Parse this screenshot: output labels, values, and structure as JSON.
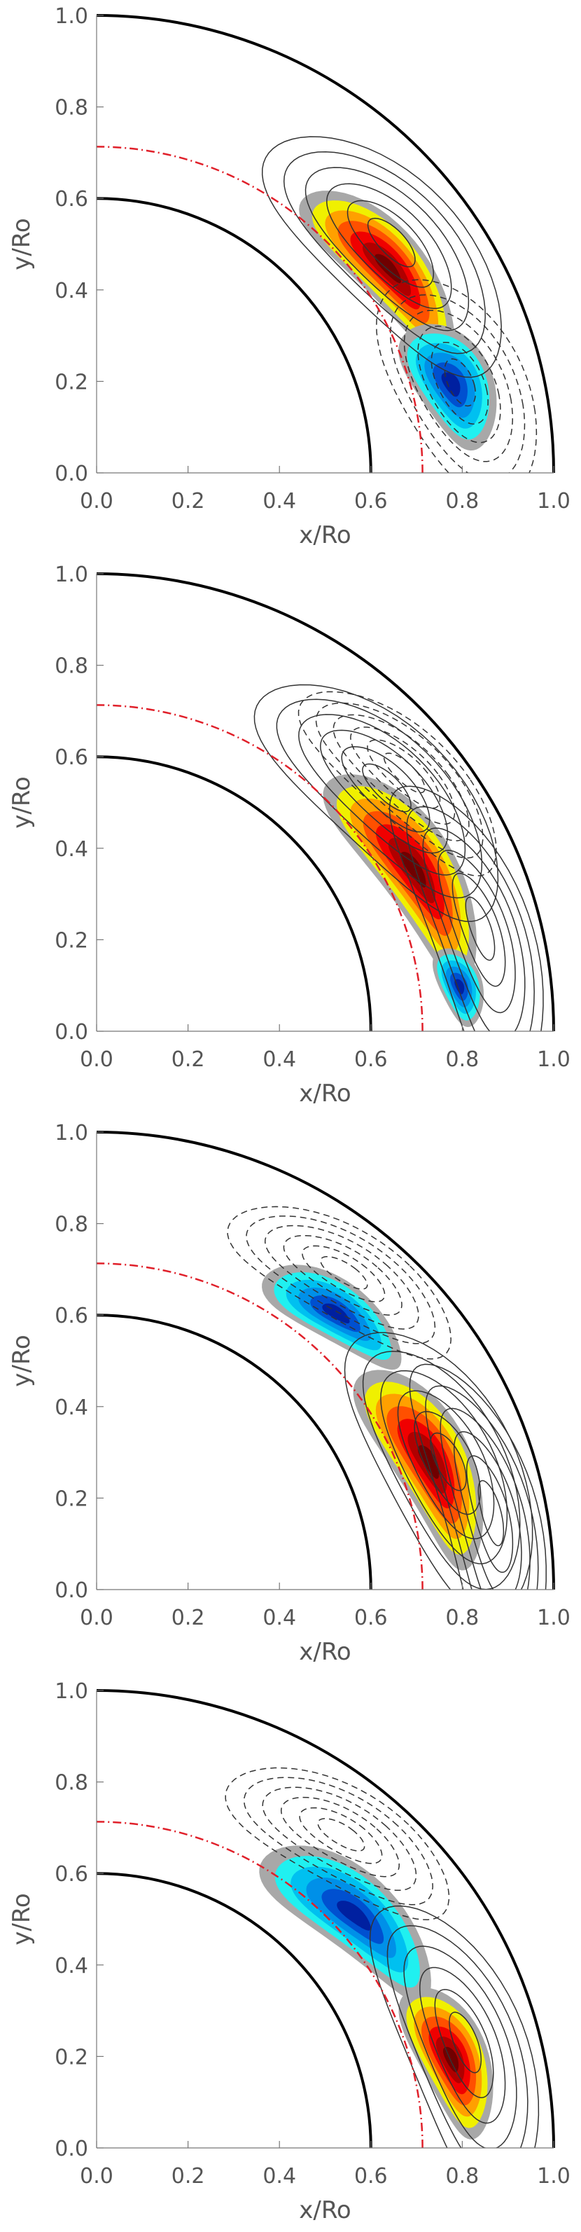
{
  "chart_data": [
    {
      "type": "contour",
      "panel": 1,
      "xlabel": "x/Ro",
      "ylabel": "y/Ro",
      "xlim": [
        0.0,
        1.0
      ],
      "ylim": [
        0.0,
        1.0
      ],
      "xticks": [
        "0.0",
        "0.2",
        "0.4",
        "0.6",
        "0.8",
        "1.0"
      ],
      "yticks": [
        "0.0",
        "0.2",
        "0.4",
        "0.6",
        "0.8",
        "1.0"
      ],
      "inner_boundary_radius": 0.6,
      "outer_boundary_radius": 1.0,
      "tachocline_radius": 0.713,
      "blobs": [
        {
          "sign": "positive",
          "center_r": 0.78,
          "center_theta_deg": 35,
          "radial_extent": 0.08,
          "angular_extent_deg": 17
        },
        {
          "sign": "negative",
          "center_r": 0.8,
          "center_theta_deg": 14,
          "radial_extent": 0.09,
          "angular_extent_deg": 10
        }
      ],
      "cells": [
        {
          "sign": "positive",
          "peak_r": 0.82,
          "peak_theta_deg": 38
        },
        {
          "sign": "negative",
          "peak_r": 0.82,
          "peak_theta_deg": 14
        }
      ]
    },
    {
      "type": "contour",
      "panel": 2,
      "xlabel": "x/Ro",
      "ylabel": "y/Ro",
      "xlim": [
        0.0,
        1.0
      ],
      "ylim": [
        0.0,
        1.0
      ],
      "xticks": [
        "0.0",
        "0.2",
        "0.4",
        "0.6",
        "0.8",
        "1.0"
      ],
      "yticks": [
        "0.0",
        "0.2",
        "0.4",
        "0.6",
        "0.8",
        "1.0"
      ],
      "inner_boundary_radius": 0.6,
      "outer_boundary_radius": 1.0,
      "tachocline_radius": 0.713,
      "blobs": [
        {
          "sign": "positive",
          "center_r": 0.78,
          "center_theta_deg": 27,
          "radial_extent": 0.09,
          "angular_extent_deg": 19
        },
        {
          "sign": "negative",
          "center_r": 0.8,
          "center_theta_deg": 7,
          "radial_extent": 0.05,
          "angular_extent_deg": 6
        }
      ],
      "cells": [
        {
          "sign": "positive",
          "peak_r": 0.83,
          "peak_theta_deg": 40
        },
        {
          "sign": "negative",
          "peak_r": 0.88,
          "peak_theta_deg": 40
        },
        {
          "sign": "positive",
          "peak_r": 0.87,
          "peak_theta_deg": 15
        }
      ]
    },
    {
      "type": "contour",
      "panel": 3,
      "xlabel": "x/Ro",
      "ylabel": "y/Ro",
      "xlim": [
        0.0,
        1.0
      ],
      "ylim": [
        0.0,
        1.0
      ],
      "xticks": [
        "0.0",
        "0.2",
        "0.4",
        "0.6",
        "0.8",
        "1.0"
      ],
      "yticks": [
        "0.0",
        "0.2",
        "0.4",
        "0.6",
        "0.8",
        "1.0"
      ],
      "inner_boundary_radius": 0.6,
      "outer_boundary_radius": 1.0,
      "tachocline_radius": 0.713,
      "blobs": [
        {
          "sign": "negative",
          "center_r": 0.8,
          "center_theta_deg": 49,
          "radial_extent": 0.07,
          "angular_extent_deg": 12
        },
        {
          "sign": "positive",
          "center_r": 0.78,
          "center_theta_deg": 21,
          "radial_extent": 0.09,
          "angular_extent_deg": 17
        }
      ],
      "cells": [
        {
          "sign": "negative",
          "peak_r": 0.88,
          "peak_theta_deg": 52
        },
        {
          "sign": "positive",
          "peak_r": 0.82,
          "peak_theta_deg": 20
        },
        {
          "sign": "positive",
          "peak_r": 0.88,
          "peak_theta_deg": 11
        }
      ]
    },
    {
      "type": "contour",
      "panel": 4,
      "xlabel": "x/Ro",
      "ylabel": "y/Ro",
      "xlim": [
        0.0,
        1.0
      ],
      "ylim": [
        0.0,
        1.0
      ],
      "xticks": [
        "0.0",
        "0.2",
        "0.4",
        "0.6",
        "0.8",
        "1.0"
      ],
      "yticks": [
        "0.0",
        "0.2",
        "0.4",
        "0.6",
        "0.8",
        "1.0"
      ],
      "inner_boundary_radius": 0.6,
      "outer_boundary_radius": 1.0,
      "tachocline_radius": 0.713,
      "blobs": [
        {
          "sign": "negative",
          "center_r": 0.76,
          "center_theta_deg": 42,
          "radial_extent": 0.09,
          "angular_extent_deg": 17
        },
        {
          "sign": "positive",
          "center_r": 0.8,
          "center_theta_deg": 14,
          "radial_extent": 0.08,
          "angular_extent_deg": 12
        }
      ],
      "cells": [
        {
          "sign": "negative",
          "peak_r": 0.87,
          "peak_theta_deg": 52
        },
        {
          "sign": "positive",
          "peak_r": 0.84,
          "peak_theta_deg": 16
        }
      ]
    }
  ],
  "colors": {
    "boundary": "#000000",
    "tachocline": "#e0202a",
    "axis_text": "#555555",
    "contour_line": "#333333",
    "positive_scale": [
      "#f0f000",
      "#ffa000",
      "#ff5000",
      "#f00000",
      "#b00000",
      "#700000"
    ],
    "negative_scale": [
      "#20f0f0",
      "#00c0f0",
      "#0090e8",
      "#0050d0",
      "#0020a0"
    ],
    "mask": "#a8a8a8"
  }
}
